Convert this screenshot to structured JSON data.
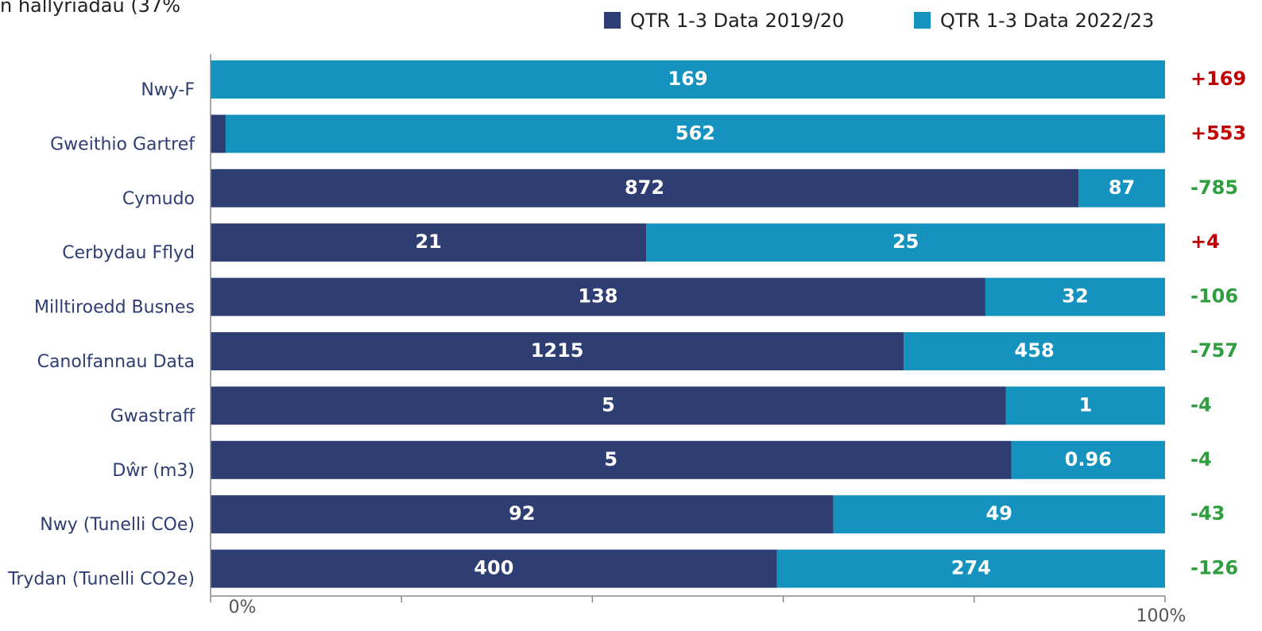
{
  "chart_data": {
    "type": "bar",
    "orientation": "horizontal",
    "stacking": "percent",
    "title": "n hallyriadau (37%",
    "categories": [
      "Nwy-F",
      "Gweithio Gartref",
      "Cymudo",
      "Cerbydau Fflyd",
      "Milltiroedd Busnes",
      "Canolfannau Data",
      "Gwastraff",
      "Dŵr (m3)",
      "Nwy (Tunelli COe)",
      "Trydan (Tunelli CO2e)"
    ],
    "series": [
      {
        "name": "QTR 1-3 Data 2019/20",
        "color": "#2e3d72",
        "values": [
          0,
          9,
          872,
          21,
          138,
          1215,
          5,
          5,
          92,
          400
        ]
      },
      {
        "name": "QTR 1-3 Data 2022/23",
        "color": "#1592be",
        "values": [
          169,
          562,
          87,
          25,
          32,
          458,
          1,
          0.96,
          49,
          274
        ]
      }
    ],
    "changes": [
      169,
      553,
      -785,
      4,
      -106,
      -757,
      -4,
      -4,
      -43,
      -126
    ],
    "change_labels": [
      "+169",
      "+553",
      "-785",
      "+4",
      "-106",
      "-757",
      "-4",
      "-4",
      "-43",
      "-126"
    ],
    "change_colors": {
      "increase": "#c00000",
      "decrease": "#2e9e3e"
    },
    "xlim": [
      0,
      100
    ],
    "xticks": [
      {
        "value": 0,
        "label": "0%"
      },
      {
        "value": 20,
        "label": null
      },
      {
        "value": 40,
        "label": null
      },
      {
        "value": 60,
        "label": null
      },
      {
        "value": 80,
        "label": null
      },
      {
        "value": 100,
        "label": "100%"
      }
    ],
    "legend": "top-right"
  }
}
